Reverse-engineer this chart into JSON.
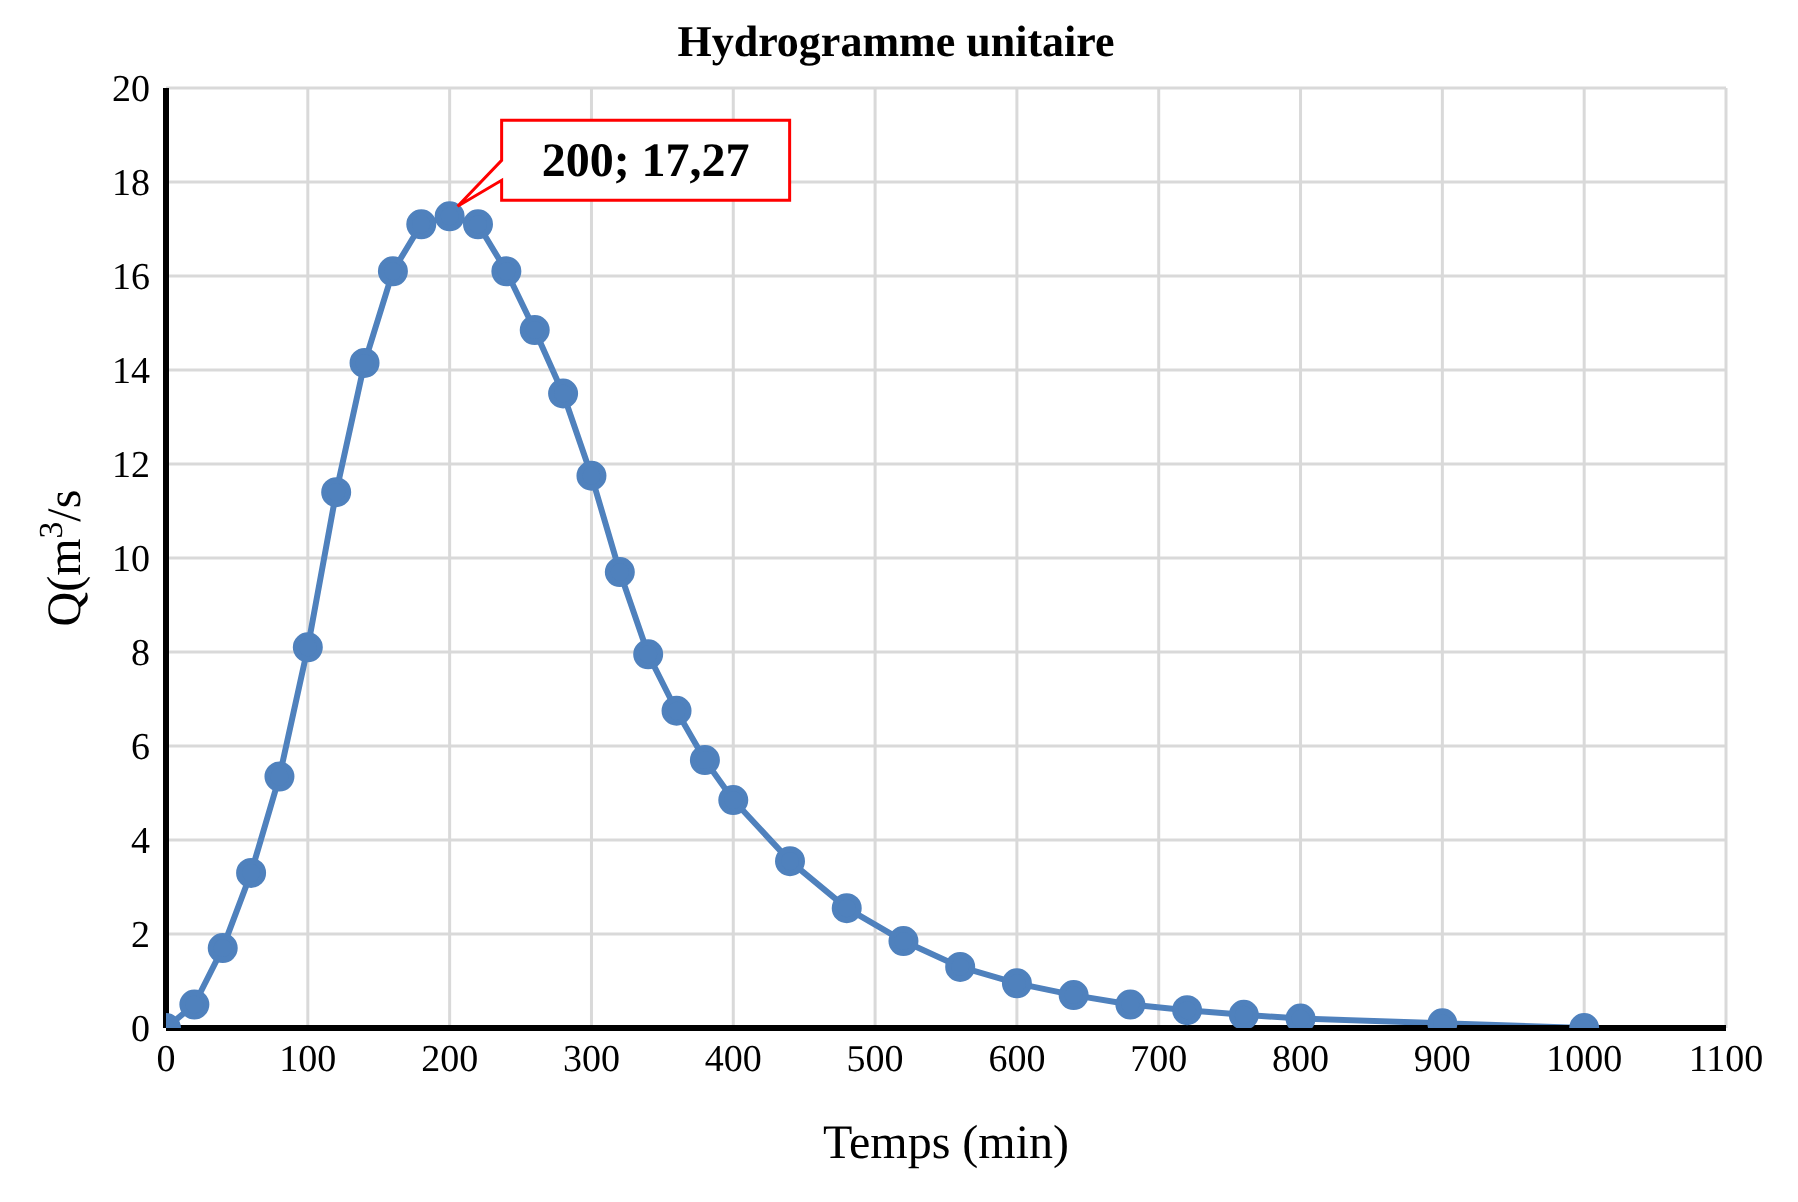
{
  "chart_data": {
    "type": "line",
    "title": "Hydrogramme unitaire",
    "xlabel": "Temps (min)",
    "ylabel": "Q(m$^{3}$/s",
    "x": [
      0,
      20,
      40,
      60,
      80,
      100,
      120,
      140,
      160,
      180,
      200,
      220,
      240,
      260,
      280,
      300,
      320,
      340,
      360,
      380,
      400,
      440,
      480,
      520,
      560,
      600,
      640,
      680,
      720,
      760,
      800,
      900,
      1000
    ],
    "series": [
      {
        "color": "#4f81bd",
        "values": [
          0,
          0.5,
          1.7,
          3.3,
          5.35,
          8.1,
          11.4,
          14.15,
          16.1,
          17.1,
          17.27,
          17.1,
          16.1,
          14.85,
          13.5,
          11.75,
          9.7,
          7.95,
          6.75,
          5.7,
          4.85,
          3.55,
          2.55,
          1.85,
          1.3,
          0.95,
          0.7,
          0.5,
          0.38,
          0.28,
          0.2,
          0.1,
          0
        ]
      }
    ],
    "xlim": [
      0,
      1100
    ],
    "xticks": [
      0,
      100,
      200,
      300,
      400,
      500,
      600,
      700,
      800,
      900,
      1000,
      1100
    ],
    "ylim": [
      0,
      20
    ],
    "yticks": [
      0,
      2,
      4,
      6,
      8,
      10,
      12,
      14,
      16,
      18,
      20
    ],
    "grid": true,
    "legend": false,
    "marker": "circle",
    "line_style": "solid",
    "annotations": [
      {
        "text": "200; 17,27",
        "x": 200,
        "y": 17.27
      }
    ]
  }
}
